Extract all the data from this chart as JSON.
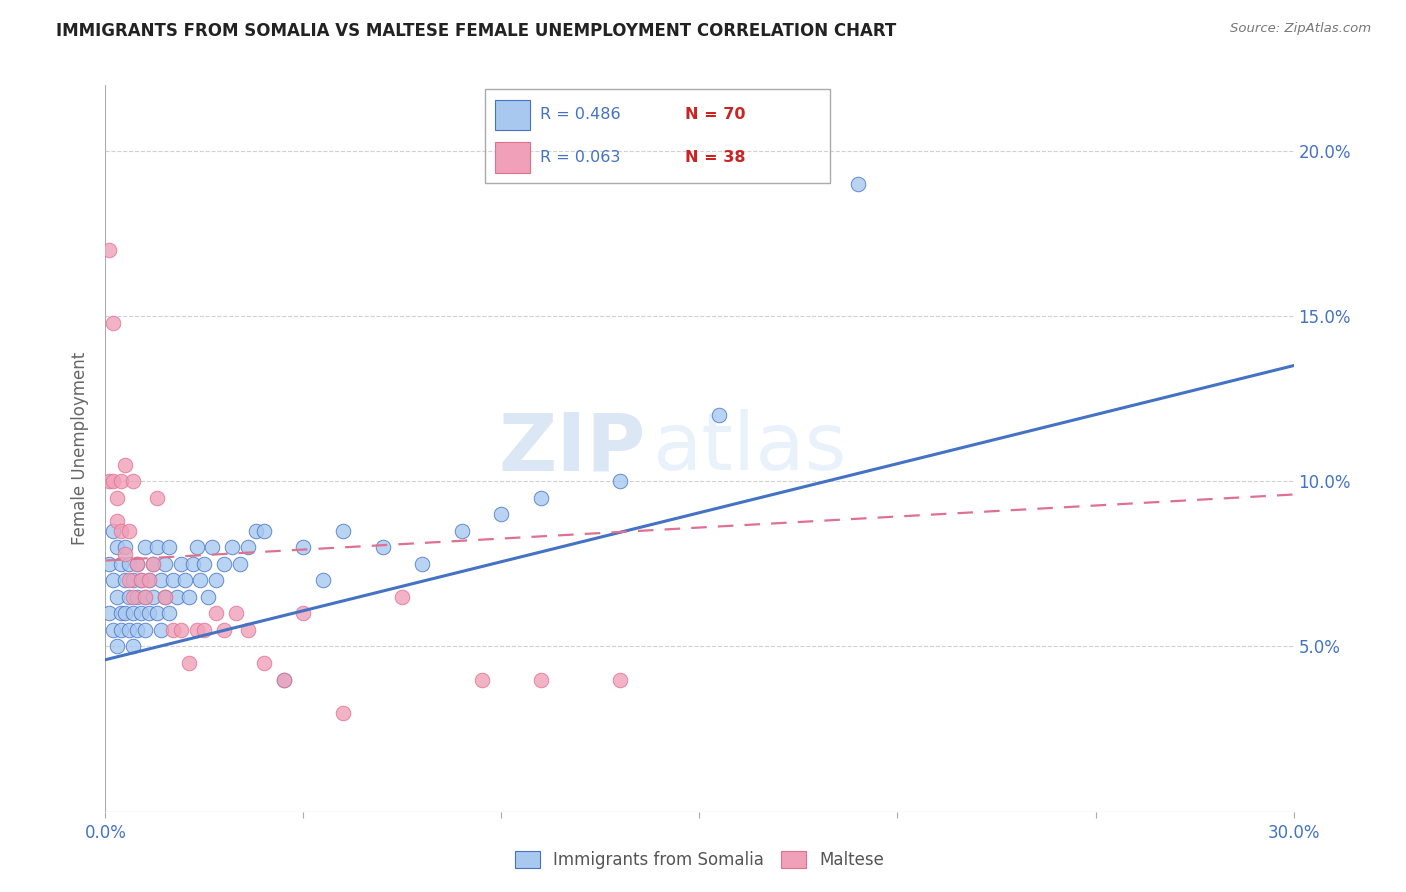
{
  "title": "IMMIGRANTS FROM SOMALIA VS MALTESE FEMALE UNEMPLOYMENT CORRELATION CHART",
  "source": "Source: ZipAtlas.com",
  "ylabel": "Female Unemployment",
  "xlim": [
    0.0,
    0.3
  ],
  "ylim": [
    0.0,
    0.22
  ],
  "ytick_positions": [
    0.05,
    0.1,
    0.15,
    0.2
  ],
  "xtick_positions": [
    0.0,
    0.05,
    0.1,
    0.15,
    0.2,
    0.25,
    0.3
  ],
  "right_ytick_labels": [
    "5.0%",
    "10.0%",
    "15.0%",
    "20.0%"
  ],
  "bottom_xtick_labels": [
    "0.0%",
    "",
    "",
    "",
    "",
    "",
    "30.0%"
  ],
  "legend1_r": "R = 0.486",
  "legend1_n": "N = 70",
  "legend2_r": "R = 0.063",
  "legend2_n": "N = 38",
  "legend_label1": "Immigrants from Somalia",
  "legend_label2": "Maltese",
  "color_blue": "#A8C8F0",
  "color_pink": "#F0A0B8",
  "color_line_blue": "#4472C4",
  "color_line_pink": "#E07090",
  "color_text_blue": "#4472C4",
  "color_n_red": "#CC2222",
  "watermark_zip": "ZIP",
  "watermark_atlas": "atlas",
  "somalia_line_x0": 0.0,
  "somalia_line_y0": 0.046,
  "somalia_line_x1": 0.3,
  "somalia_line_y1": 0.135,
  "maltese_line_x0": 0.0,
  "maltese_line_y0": 0.076,
  "maltese_line_x1": 0.3,
  "maltese_line_y1": 0.096,
  "somalia_x": [
    0.001,
    0.001,
    0.002,
    0.002,
    0.002,
    0.003,
    0.003,
    0.003,
    0.004,
    0.004,
    0.004,
    0.005,
    0.005,
    0.005,
    0.006,
    0.006,
    0.006,
    0.007,
    0.007,
    0.007,
    0.008,
    0.008,
    0.008,
    0.009,
    0.009,
    0.01,
    0.01,
    0.01,
    0.011,
    0.011,
    0.012,
    0.012,
    0.013,
    0.013,
    0.014,
    0.014,
    0.015,
    0.015,
    0.016,
    0.016,
    0.017,
    0.018,
    0.019,
    0.02,
    0.021,
    0.022,
    0.023,
    0.024,
    0.025,
    0.026,
    0.027,
    0.028,
    0.03,
    0.032,
    0.034,
    0.036,
    0.038,
    0.04,
    0.045,
    0.05,
    0.055,
    0.06,
    0.07,
    0.08,
    0.09,
    0.1,
    0.11,
    0.13,
    0.155,
    0.19
  ],
  "somalia_y": [
    0.075,
    0.06,
    0.07,
    0.055,
    0.085,
    0.065,
    0.05,
    0.08,
    0.06,
    0.075,
    0.055,
    0.07,
    0.06,
    0.08,
    0.055,
    0.065,
    0.075,
    0.06,
    0.07,
    0.05,
    0.065,
    0.075,
    0.055,
    0.06,
    0.07,
    0.055,
    0.065,
    0.08,
    0.06,
    0.07,
    0.065,
    0.075,
    0.06,
    0.08,
    0.055,
    0.07,
    0.065,
    0.075,
    0.06,
    0.08,
    0.07,
    0.065,
    0.075,
    0.07,
    0.065,
    0.075,
    0.08,
    0.07,
    0.075,
    0.065,
    0.08,
    0.07,
    0.075,
    0.08,
    0.075,
    0.08,
    0.085,
    0.085,
    0.04,
    0.08,
    0.07,
    0.085,
    0.08,
    0.075,
    0.085,
    0.09,
    0.095,
    0.1,
    0.12,
    0.19
  ],
  "maltese_x": [
    0.001,
    0.001,
    0.002,
    0.002,
    0.003,
    0.003,
    0.004,
    0.004,
    0.005,
    0.005,
    0.006,
    0.006,
    0.007,
    0.007,
    0.008,
    0.009,
    0.01,
    0.011,
    0.012,
    0.013,
    0.015,
    0.017,
    0.019,
    0.021,
    0.023,
    0.025,
    0.028,
    0.03,
    0.033,
    0.036,
    0.04,
    0.045,
    0.05,
    0.06,
    0.075,
    0.095,
    0.11,
    0.13
  ],
  "maltese_y": [
    0.17,
    0.1,
    0.148,
    0.1,
    0.095,
    0.088,
    0.085,
    0.1,
    0.078,
    0.105,
    0.07,
    0.085,
    0.065,
    0.1,
    0.075,
    0.07,
    0.065,
    0.07,
    0.075,
    0.095,
    0.065,
    0.055,
    0.055,
    0.045,
    0.055,
    0.055,
    0.06,
    0.055,
    0.06,
    0.055,
    0.045,
    0.04,
    0.06,
    0.03,
    0.065,
    0.04,
    0.04,
    0.04
  ]
}
